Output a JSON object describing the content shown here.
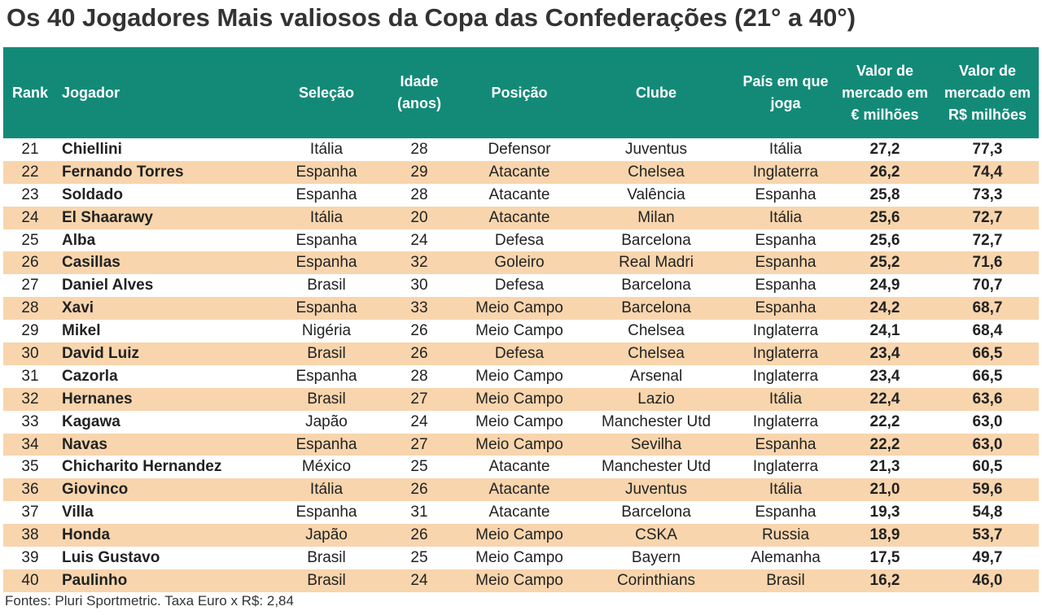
{
  "title": "Os 40 Jogadores Mais valiosos da Copa das Confederações (21° a 40°)",
  "table": {
    "headers": [
      "Rank",
      "Jogador",
      "Seleção",
      "Idade (anos)",
      "Posição",
      "Clube",
      "País em que joga",
      "Valor de mercado em € milhões",
      "Valor de mercado em R$ milhões"
    ],
    "rows": [
      [
        "21",
        "Chiellini",
        "Itália",
        "28",
        "Defensor",
        "Juventus",
        "Itália",
        "27,2",
        "77,3"
      ],
      [
        "22",
        "Fernando Torres",
        "Espanha",
        "29",
        "Atacante",
        "Chelsea",
        "Inglaterra",
        "26,2",
        "74,4"
      ],
      [
        "23",
        "Soldado",
        "Espanha",
        "28",
        "Atacante",
        "Valência",
        "Espanha",
        "25,8",
        "73,3"
      ],
      [
        "24",
        "El Shaarawy",
        "Itália",
        "20",
        "Atacante",
        "Milan",
        "Itália",
        "25,6",
        "72,7"
      ],
      [
        "25",
        "Alba",
        "Espanha",
        "24",
        "Defesa",
        "Barcelona",
        "Espanha",
        "25,6",
        "72,7"
      ],
      [
        "26",
        "Casillas",
        "Espanha",
        "32",
        "Goleiro",
        "Real Madri",
        "Espanha",
        "25,2",
        "71,6"
      ],
      [
        "27",
        "Daniel Alves",
        "Brasil",
        "30",
        "Defesa",
        "Barcelona",
        "Espanha",
        "24,9",
        "70,7"
      ],
      [
        "28",
        "Xavi",
        "Espanha",
        "33",
        "Meio Campo",
        "Barcelona",
        "Espanha",
        "24,2",
        "68,7"
      ],
      [
        "29",
        "Mikel",
        "Nigéria",
        "26",
        "Meio Campo",
        "Chelsea",
        "Inglaterra",
        "24,1",
        "68,4"
      ],
      [
        "30",
        "David Luiz",
        "Brasil",
        "26",
        "Defesa",
        "Chelsea",
        "Inglaterra",
        "23,4",
        "66,5"
      ],
      [
        "31",
        "Cazorla",
        "Espanha",
        "28",
        "Meio Campo",
        "Arsenal",
        "Inglaterra",
        "23,4",
        "66,5"
      ],
      [
        "32",
        "Hernanes",
        "Brasil",
        "27",
        "Meio Campo",
        "Lazio",
        "Itália",
        "22,4",
        "63,6"
      ],
      [
        "33",
        "Kagawa",
        "Japão",
        "24",
        "Meio Campo",
        "Manchester Utd",
        "Inglaterra",
        "22,2",
        "63,0"
      ],
      [
        "34",
        "Navas",
        "Espanha",
        "27",
        "Meio Campo",
        "Sevilha",
        "Espanha",
        "22,2",
        "63,0"
      ],
      [
        "35",
        "Chicharito Hernandez",
        "México",
        "25",
        "Atacante",
        "Manchester Utd",
        "Inglaterra",
        "21,3",
        "60,5"
      ],
      [
        "36",
        "Giovinco",
        "Itália",
        "26",
        "Atacante",
        "Juventus",
        "Itália",
        "21,0",
        "59,6"
      ],
      [
        "37",
        "Villa",
        "Espanha",
        "31",
        "Atacante",
        "Barcelona",
        "Espanha",
        "19,3",
        "54,8"
      ],
      [
        "38",
        "Honda",
        "Japão",
        "26",
        "Meio Campo",
        "CSKA",
        "Russia",
        "18,9",
        "53,7"
      ],
      [
        "39",
        "Luis Gustavo",
        "Brasil",
        "25",
        "Meio Campo",
        "Bayern",
        "Alemanha",
        "17,5",
        "49,7"
      ],
      [
        "40",
        "Paulinho",
        "Brasil",
        "24",
        "Meio Campo",
        "Corinthians",
        "Brasil",
        "16,2",
        "46,0"
      ]
    ]
  },
  "footer": "Fontes: Pluri Sportmetric. Taxa Euro x R$: 2,84"
}
